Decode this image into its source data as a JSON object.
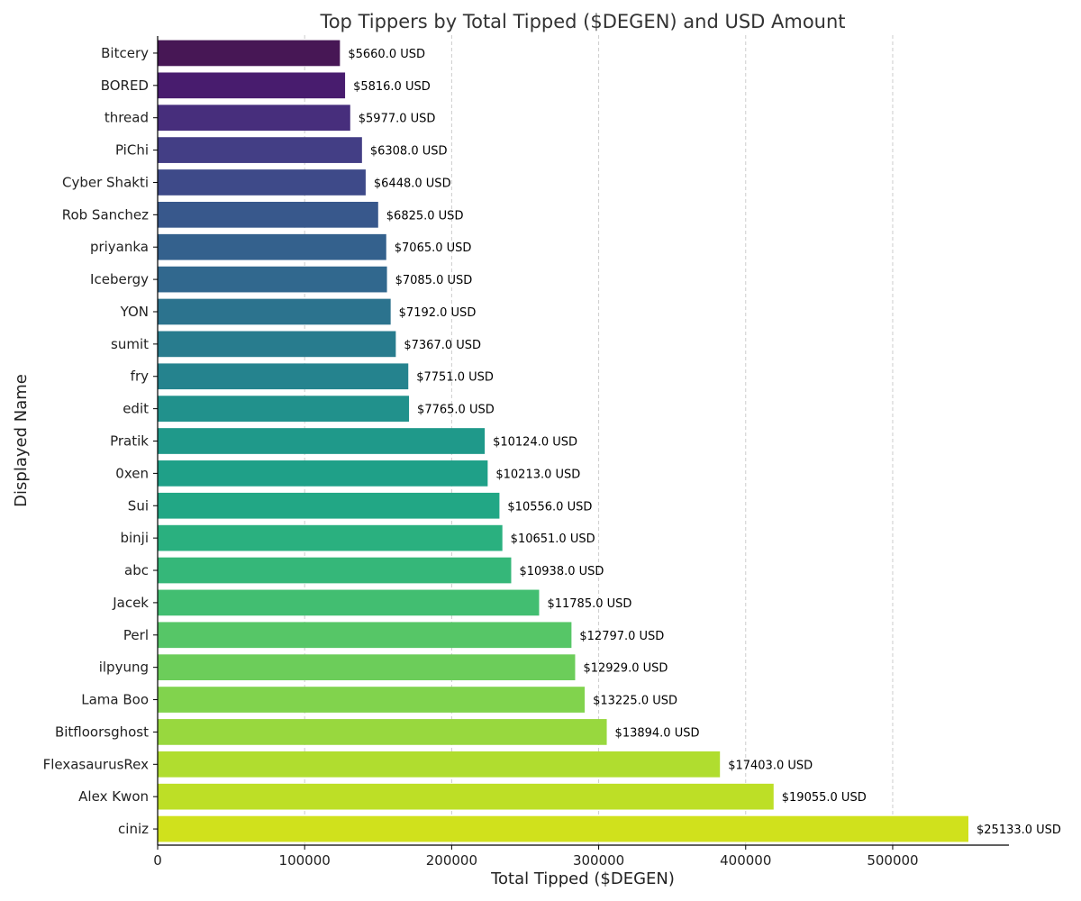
{
  "chart_data": {
    "type": "bar",
    "orientation": "horizontal",
    "title": "Top Tippers by Total Tipped ($DEGEN) and USD Amount",
    "xlabel": "Total Tipped ($DEGEN)",
    "ylabel": "Displayed Name",
    "xlim": [
      0,
      580000
    ],
    "xticks": [
      0,
      100000,
      200000,
      300000,
      400000,
      500000
    ],
    "xtick_labels": [
      "0",
      "100000",
      "200000",
      "300000",
      "400000",
      "500000"
    ],
    "grid": "x-dashed",
    "categories": [
      "Bitcery",
      "BORED",
      "thread",
      "PiChi",
      "Cyber Shakti",
      "Rob Sanchez",
      "priyanka",
      "Icebergy",
      "YON",
      "sumit",
      "fry",
      "edit",
      "Pratik",
      "0xen",
      "Sui",
      "binji",
      "abc",
      "Jacek",
      "Perl",
      "ilpyung",
      "Lama Boo",
      "Bitfloorsghost",
      "FlexasaurusRex",
      "Alex Kwon",
      "ciniz"
    ],
    "values": [
      124000,
      127500,
      131000,
      139000,
      141500,
      150000,
      155500,
      156000,
      158500,
      162000,
      170500,
      171000,
      222500,
      224500,
      232500,
      234500,
      240500,
      259500,
      281500,
      284000,
      290500,
      305500,
      382500,
      419000,
      551500
    ],
    "data_labels": [
      "$5660.0 USD",
      "$5816.0 USD",
      "$5977.0 USD",
      "$6308.0 USD",
      "$6448.0 USD",
      "$6825.0 USD",
      "$7065.0 USD",
      "$7085.0 USD",
      "$7192.0 USD",
      "$7367.0 USD",
      "$7751.0 USD",
      "$7765.0 USD",
      "$10124.0 USD",
      "$10213.0 USD",
      "$10556.0 USD",
      "$10651.0 USD",
      "$10938.0 USD",
      "$11785.0 USD",
      "$12797.0 USD",
      "$12929.0 USD",
      "$13225.0 USD",
      "$13894.0 USD",
      "$17403.0 USD",
      "$19055.0 USD",
      "$25133.0 USD"
    ],
    "colors": [
      "#471755",
      "#481c6e",
      "#472e7c",
      "#433e85",
      "#3e4a89",
      "#38588c",
      "#34618d",
      "#31688e",
      "#2c738e",
      "#287c8e",
      "#25838e",
      "#21918c",
      "#1f998a",
      "#1fa088",
      "#22a785",
      "#2ab07f",
      "#35b779",
      "#42be71",
      "#56c667",
      "#6ccd5a",
      "#81d34d",
      "#98d83e",
      "#b0dd2f",
      "#bddf26",
      "#d0e11c"
    ]
  }
}
